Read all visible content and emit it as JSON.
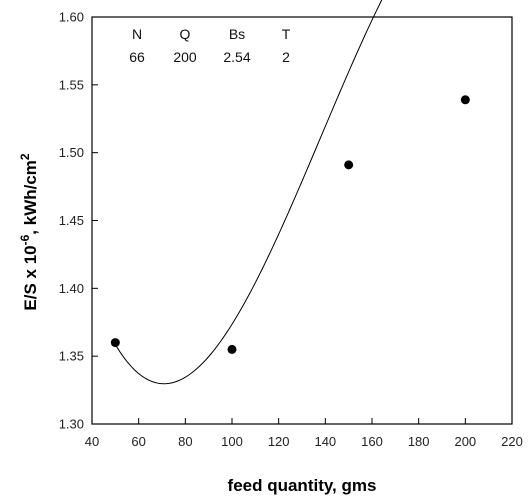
{
  "chart_data": {
    "type": "scatter",
    "xlabel": "feed quantity, gms",
    "ylabel": {
      "base": "E/S x 10",
      "exp": "-6",
      "unit": ", kWh/cm",
      "unit_exp": "2"
    },
    "xlim": [
      40,
      220
    ],
    "ylim": [
      1.3,
      1.6
    ],
    "xticks": [
      "40",
      "60",
      "80",
      "100",
      "120",
      "140",
      "160",
      "180",
      "200",
      "220"
    ],
    "yticks": [
      "1.30",
      "1.35",
      "1.40",
      "1.45",
      "1.50",
      "1.55",
      "1.60"
    ],
    "grid": false,
    "points": [
      {
        "x": 50,
        "y": 1.36
      },
      {
        "x": 100,
        "y": 1.355
      },
      {
        "x": 150,
        "y": 1.491
      },
      {
        "x": 200,
        "y": 1.539
      }
    ],
    "fit_curve": {
      "type": "cubic",
      "coefficients": [
        1.7385,
        -0.013035,
        0.00012365,
        -2.98e-07
      ]
    },
    "parameters": {
      "headers": [
        "N",
        "Q",
        "Bs",
        "T"
      ],
      "values": [
        "66",
        "200",
        "2.54",
        "2"
      ]
    }
  }
}
